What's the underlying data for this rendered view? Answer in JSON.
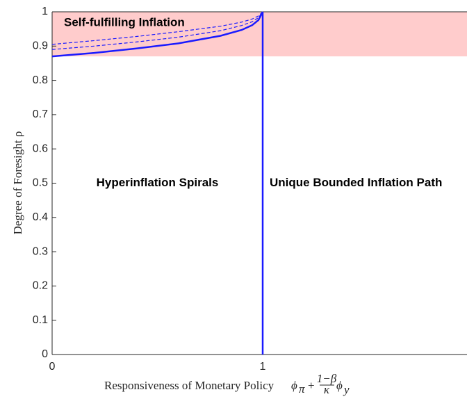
{
  "chart_data": {
    "type": "line",
    "xlabel": "Responsiveness of Monetary Policy",
    "xlabel_math": {
      "phi": "ϕ",
      "pi": "π",
      "plus": "+",
      "num": "1−β",
      "den": "κ",
      "y": "y"
    },
    "ylabel": "Degree of Foresight ρ",
    "xlim": [
      0,
      2
    ],
    "ylim": [
      0,
      1
    ],
    "xticks": [
      0,
      1
    ],
    "yticks": [
      0,
      0.1,
      0.2,
      0.3,
      0.4,
      0.5,
      0.6,
      0.7,
      0.8,
      0.9,
      1
    ],
    "region": {
      "y": [
        0.87,
        1
      ],
      "color": "#ffcccc"
    },
    "annotations": [
      "Self-fulfilling Inflation",
      "Hyperinflation Spirals",
      "Unique Bounded Inflation Path"
    ],
    "series": [
      {
        "color": "#1a1aff",
        "dash": false,
        "x": [
          0,
          0.2,
          0.4,
          0.6,
          0.8,
          0.9,
          0.95,
          0.98,
          1
        ],
        "values": [
          0.87,
          0.88,
          0.893,
          0.908,
          0.93,
          0.947,
          0.961,
          0.976,
          1
        ]
      },
      {
        "color": "#1a1aff",
        "dash": true,
        "x": [
          0,
          0.2,
          0.4,
          0.6,
          0.8,
          0.9,
          0.95,
          0.98,
          1
        ],
        "values": [
          0.89,
          0.9,
          0.912,
          0.926,
          0.945,
          0.96,
          0.971,
          0.983,
          1
        ]
      },
      {
        "color": "#1a1aff",
        "dash": true,
        "x": [
          0,
          0.2,
          0.4,
          0.6,
          0.8,
          0.9,
          0.95,
          0.98,
          1
        ],
        "values": [
          0.905,
          0.916,
          0.928,
          0.942,
          0.958,
          0.97,
          0.979,
          0.988,
          1
        ]
      },
      {
        "color": "#1a1aff",
        "dash": false,
        "x": [
          1,
          1
        ],
        "values": [
          0,
          1
        ]
      }
    ]
  }
}
